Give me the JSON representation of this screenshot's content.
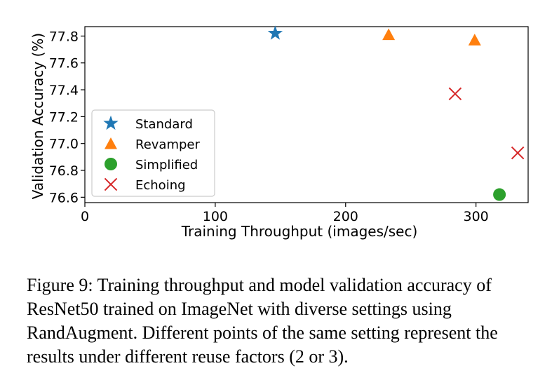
{
  "chart_data": {
    "type": "scatter",
    "xlabel": "Training Throughput (images/sec)",
    "ylabel": "Validation Accuracy (%)",
    "xlim": [
      0,
      340
    ],
    "ylim": [
      76.56,
      77.87
    ],
    "xticks": [
      0,
      100,
      200,
      300
    ],
    "yticks": [
      76.6,
      76.8,
      77.0,
      77.2,
      77.4,
      77.6,
      77.8
    ],
    "xtick_labels": [
      "0",
      "100",
      "200",
      "300"
    ],
    "ytick_labels": [
      "76.6",
      "76.8",
      "77.0",
      "77.2",
      "77.4",
      "77.6",
      "77.8"
    ],
    "grid": false,
    "legend_position": "lower-left",
    "series": [
      {
        "name": "Standard",
        "marker": "star",
        "color": "#1f77b4",
        "points": [
          {
            "x": 146,
            "y": 77.82
          }
        ]
      },
      {
        "name": "Revamper",
        "marker": "triangle",
        "color": "#ff7f0e",
        "points": [
          {
            "x": 233,
            "y": 77.81
          },
          {
            "x": 299,
            "y": 77.77
          }
        ]
      },
      {
        "name": "Simplified",
        "marker": "circle",
        "color": "#2ca02c",
        "points": [
          {
            "x": 318,
            "y": 76.62
          }
        ]
      },
      {
        "name": "Echoing",
        "marker": "x",
        "color": "#d62728",
        "points": [
          {
            "x": 284,
            "y": 77.37
          },
          {
            "x": 332,
            "y": 76.93
          }
        ]
      }
    ]
  },
  "caption": "Figure 9: Training throughput and model validation accuracy of ResNet50 trained on ImageNet with diverse settings using RandAugment. Different points of the same setting represent the results under different reuse factors (2 or 3)."
}
